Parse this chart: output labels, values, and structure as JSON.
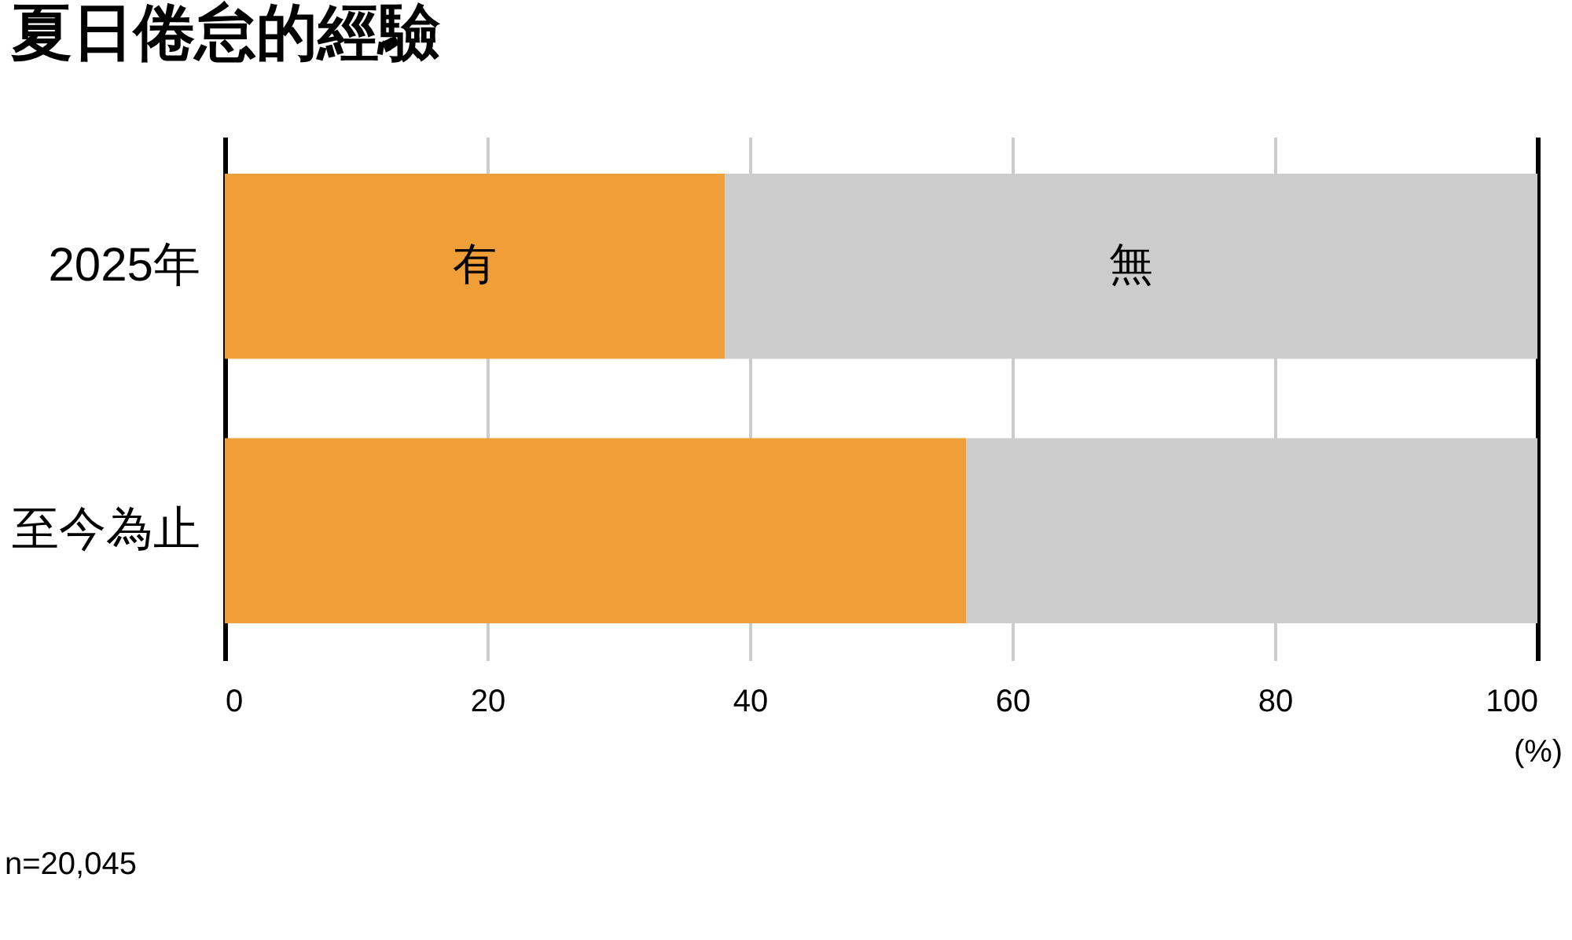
{
  "chart_data": {
    "type": "bar",
    "orientation": "horizontal",
    "stacked": true,
    "title": "夏日倦怠的經驗",
    "xlabel": "(%)",
    "categories": [
      "2025年",
      "至今為止"
    ],
    "series": [
      {
        "name": "有",
        "color": "#f09f38",
        "values": [
          38.1,
          56.5
        ]
      },
      {
        "name": "無",
        "color": "#cccccc",
        "values": [
          61.9,
          43.5
        ]
      }
    ],
    "xlim": [
      0,
      100
    ],
    "xticks": [
      0,
      20,
      40,
      60,
      80,
      100
    ],
    "grid": "x",
    "annotations": [
      "n=20,045"
    ]
  }
}
